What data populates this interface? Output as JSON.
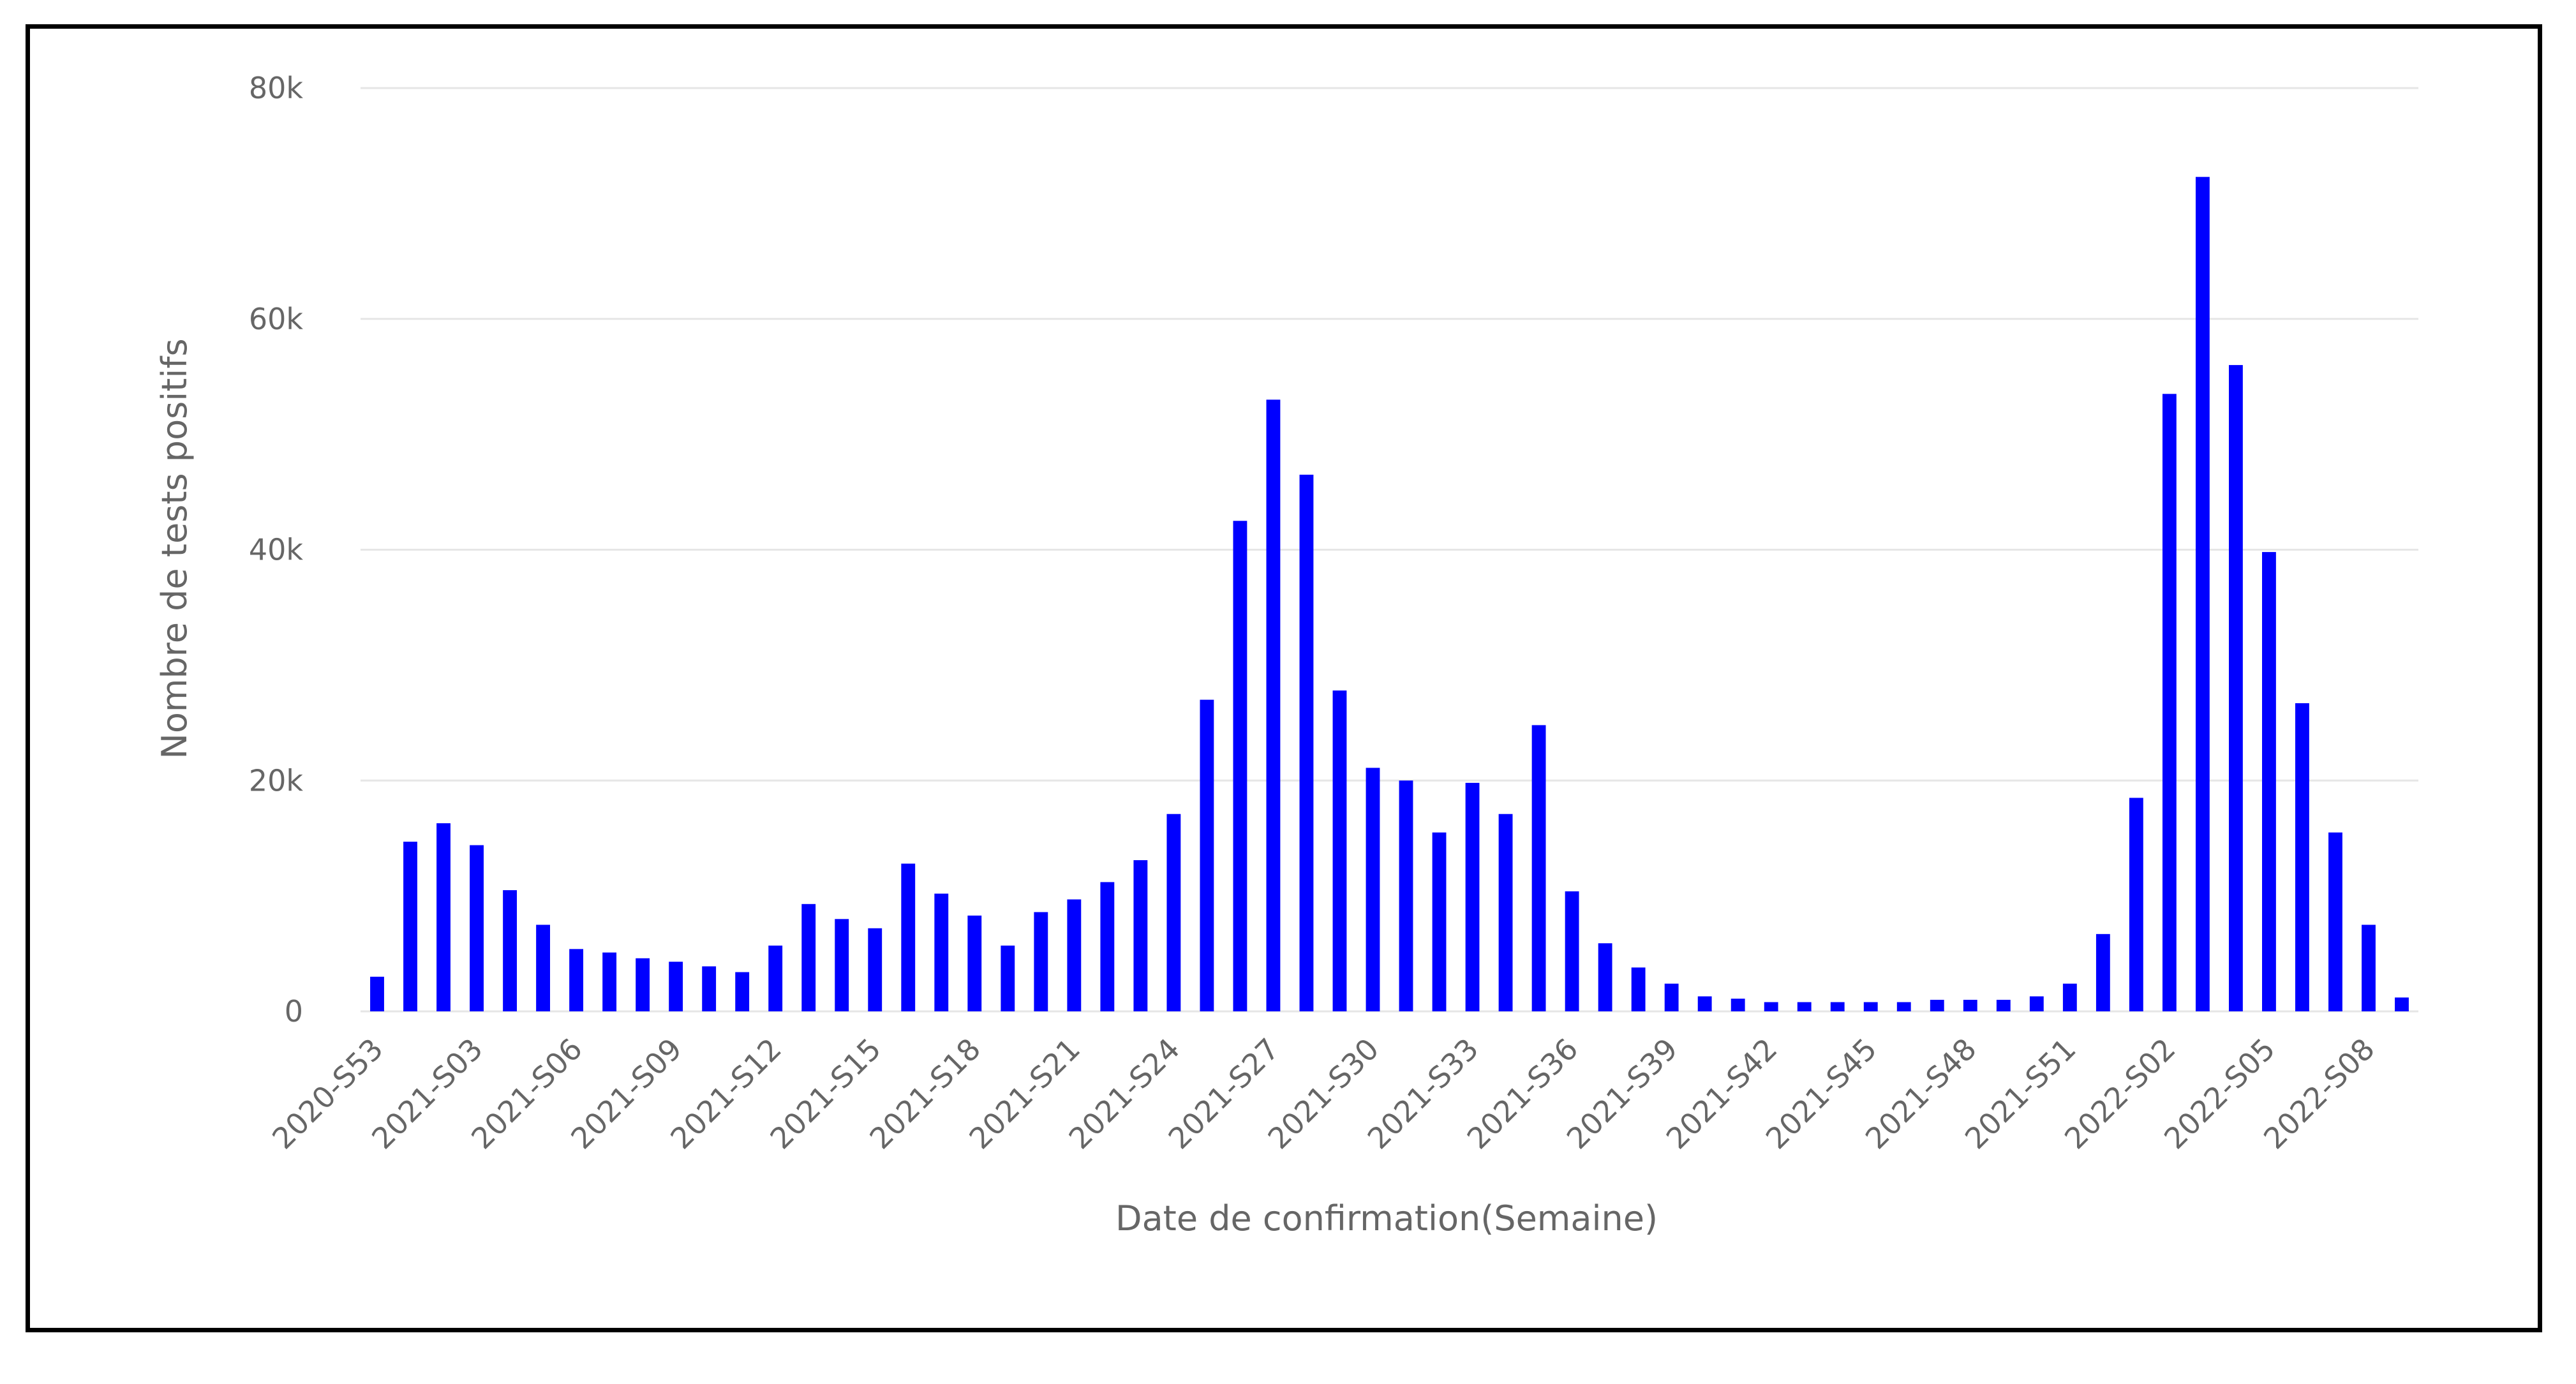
{
  "chart_data": {
    "type": "bar",
    "xlabel": "Date de confirmation(Semaine)",
    "ylabel": "Nombre de tests positifs",
    "ylim": [
      0,
      80000
    ],
    "yticks": [
      0,
      20000,
      40000,
      60000,
      80000
    ],
    "ytick_labels": [
      "0",
      "20k",
      "40k",
      "60k",
      "80k"
    ],
    "grid": true,
    "bar_color": "#0000ff",
    "categories": [
      "2020-S53",
      "2021-S01",
      "2021-S02",
      "2021-S03",
      "2021-S04",
      "2021-S05",
      "2021-S06",
      "2021-S07",
      "2021-S08",
      "2021-S09",
      "2021-S10",
      "2021-S11",
      "2021-S12",
      "2021-S13",
      "2021-S14",
      "2021-S15",
      "2021-S16",
      "2021-S17",
      "2021-S18",
      "2021-S19",
      "2021-S20",
      "2021-S21",
      "2021-S22",
      "2021-S23",
      "2021-S24",
      "2021-S25",
      "2021-S26",
      "2021-S27",
      "2021-S28",
      "2021-S29",
      "2021-S30",
      "2021-S31",
      "2021-S32",
      "2021-S33",
      "2021-S34",
      "2021-S35",
      "2021-S36",
      "2021-S37",
      "2021-S38",
      "2021-S39",
      "2021-S40",
      "2021-S41",
      "2021-S42",
      "2021-S43",
      "2021-S44",
      "2021-S45",
      "2021-S46",
      "2021-S47",
      "2021-S48",
      "2021-S49",
      "2021-S50",
      "2021-S51",
      "2021-S52",
      "2022-S01",
      "2022-S02",
      "2022-S03",
      "2022-S04",
      "2022-S05",
      "2022-S06",
      "2022-S07",
      "2022-S08",
      "2022-S09"
    ],
    "xtick_labels": [
      "2020-S53",
      "2021-S03",
      "2021-S06",
      "2021-S09",
      "2021-S12",
      "2021-S15",
      "2021-S18",
      "2021-S21",
      "2021-S24",
      "2021-S27",
      "2021-S30",
      "2021-S33",
      "2021-S36",
      "2021-S39",
      "2021-S42",
      "2021-S45",
      "2021-S48",
      "2021-S51",
      "2022-S02",
      "2022-S05",
      "2022-S08"
    ],
    "values": [
      3000,
      14700,
      16300,
      14400,
      10500,
      7500,
      5400,
      5100,
      4600,
      4300,
      3900,
      3400,
      5700,
      9300,
      8000,
      7200,
      12800,
      10200,
      8300,
      5700,
      8600,
      9700,
      11200,
      13100,
      17100,
      27000,
      42500,
      53000,
      46500,
      27800,
      21100,
      20000,
      15500,
      19800,
      17100,
      24800,
      10400,
      5900,
      3800,
      2400,
      1300,
      1100,
      800,
      800,
      800,
      800,
      800,
      1000,
      1000,
      1000,
      1300,
      2400,
      6700,
      18500,
      53500,
      72300,
      56000,
      39800,
      26700,
      15500,
      7500,
      1200
    ]
  }
}
